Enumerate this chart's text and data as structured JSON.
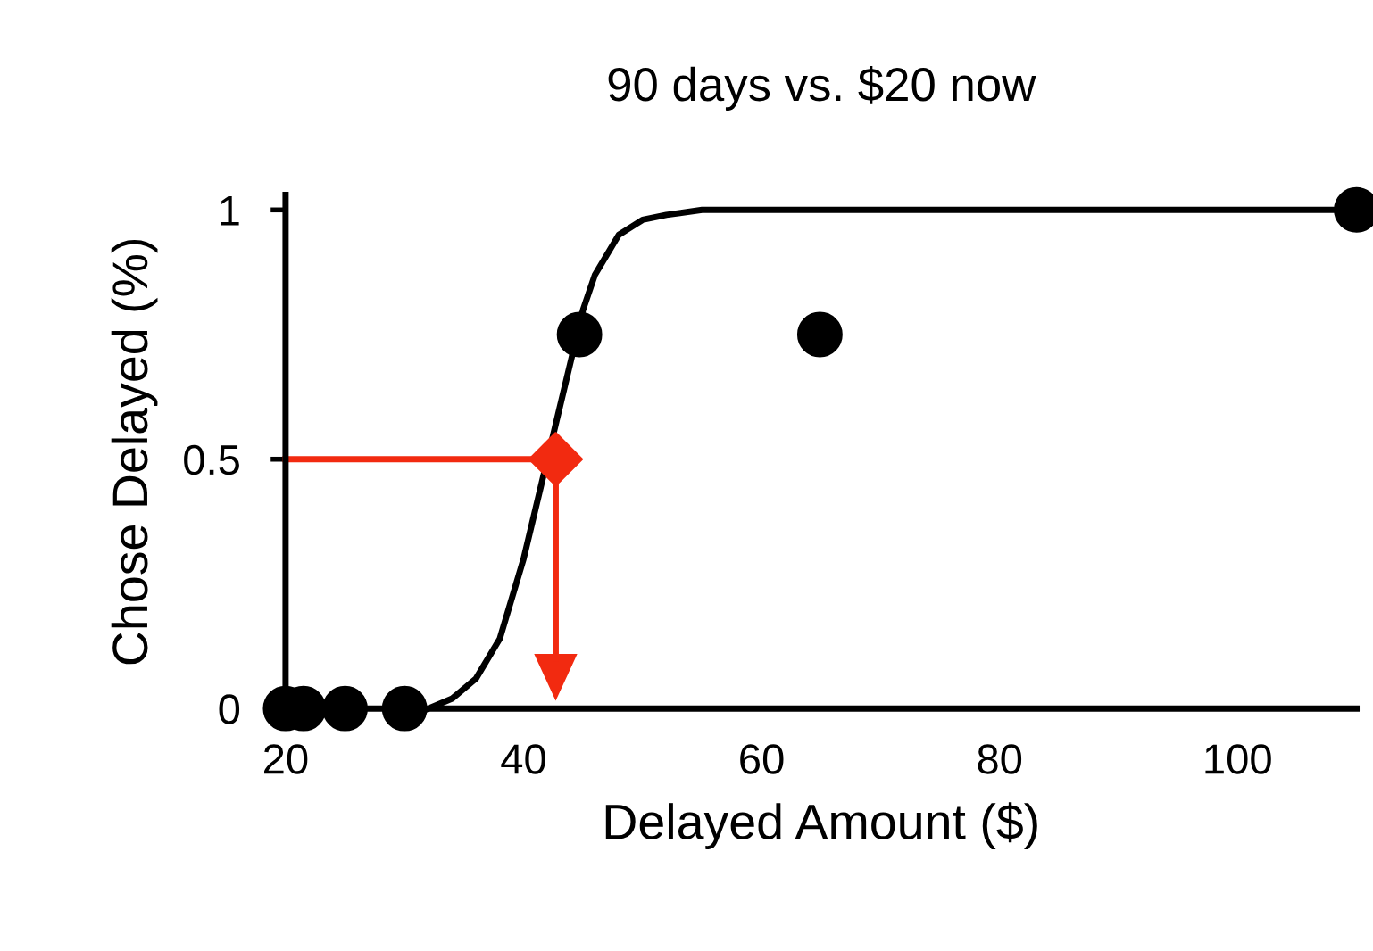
{
  "chart_data": {
    "type": "scatter",
    "title": "90 days vs. $20 now",
    "xlabel": "Delayed Amount ($)",
    "ylabel": "Chose Delayed (%)",
    "xlim": [
      20,
      110
    ],
    "ylim": [
      0,
      1.03
    ],
    "xticks": [
      20,
      40,
      60,
      80,
      100
    ],
    "yticks": [
      0,
      0.5,
      1
    ],
    "grid": false,
    "series": [
      {
        "type": "line",
        "color": "#000000",
        "marker": "none",
        "x": [
          32,
          34,
          36,
          38,
          40,
          41,
          43,
          44,
          45,
          46,
          48,
          50,
          52,
          55,
          60,
          110
        ],
        "values": [
          0,
          0.02,
          0.06,
          0.14,
          0.3,
          0.4,
          0.6,
          0.7,
          0.8,
          0.87,
          0.95,
          0.98,
          0.99,
          1,
          1,
          1
        ]
      },
      {
        "type": "line",
        "color": "#f22a10",
        "marker": "none",
        "x": [
          20,
          42.7,
          42.7
        ],
        "values": [
          0.5,
          0.5,
          0.1
        ]
      },
      {
        "color": "#000000",
        "marker": "circle",
        "x": [
          20,
          21.5,
          25,
          30,
          44.7,
          64.9,
          110
        ],
        "values": [
          0,
          0,
          0,
          0,
          0.75,
          0.75,
          1
        ]
      },
      {
        "color": "#f22a10",
        "marker": "diamond",
        "x": [
          42.7
        ],
        "values": [
          0.5
        ]
      }
    ]
  }
}
